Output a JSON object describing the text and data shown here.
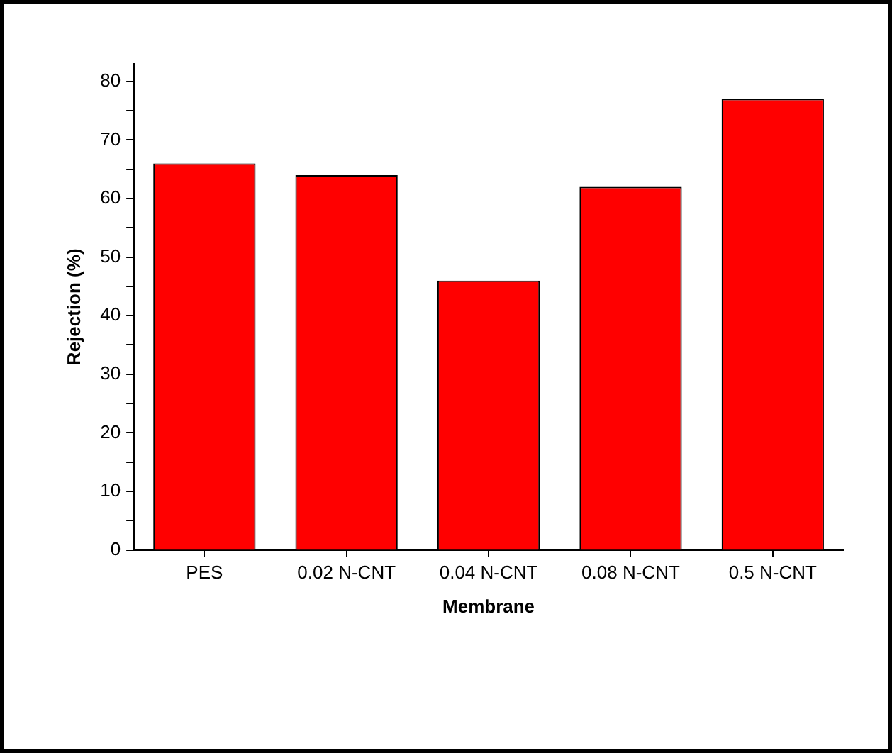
{
  "chart_data": {
    "type": "bar",
    "xlabel": "Membrane",
    "ylabel": "Rejection (%)",
    "categories": [
      "PES",
      "0.02 N-CNT",
      "0.04 N-CNT",
      "0.08 N-CNT",
      "0.5 N-CNT"
    ],
    "values": [
      66,
      64,
      46,
      62,
      77
    ],
    "color": "#ff0000",
    "ylim": [
      0,
      83
    ],
    "yticks": [
      0,
      {
        "value": 5,
        "label": null
      },
      10,
      {
        "value": 15,
        "label": null
      },
      20,
      {
        "value": 25,
        "label": null
      },
      30,
      {
        "value": 35,
        "label": null
      },
      40,
      {
        "value": 45,
        "label": null
      },
      50,
      {
        "value": 55,
        "label": null
      },
      60,
      {
        "value": 65,
        "label": null
      },
      70,
      {
        "value": 75,
        "label": null
      },
      80
    ],
    "grid": false,
    "legend": false
  }
}
